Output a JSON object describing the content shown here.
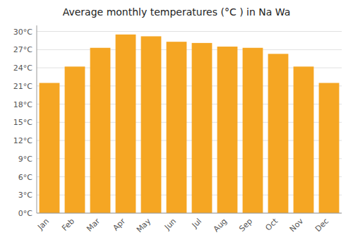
{
  "chart_data": {
    "type": "bar",
    "title": "Average monthly temperatures (°C ) in Na Wa",
    "categories": [
      "Jan",
      "Feb",
      "Mar",
      "Apr",
      "May",
      "Jun",
      "Jul",
      "Aug",
      "Sep",
      "Oct",
      "Nov",
      "Dec"
    ],
    "values": [
      21.5,
      24.2,
      27.3,
      29.5,
      29.2,
      28.3,
      28.1,
      27.5,
      27.3,
      26.3,
      24.2,
      21.5
    ],
    "color": "#F5A623",
    "ylim": [
      0,
      31
    ],
    "yticks": [
      {
        "value": 0,
        "label": "0°C"
      },
      {
        "value": 3,
        "label": "3°C"
      },
      {
        "value": 6,
        "label": "6°C"
      },
      {
        "value": 9,
        "label": "9°C"
      },
      {
        "value": 12,
        "label": "12°C"
      },
      {
        "value": 15,
        "label": "15°C"
      },
      {
        "value": 18,
        "label": "18°C"
      },
      {
        "value": 21,
        "label": "21°C"
      },
      {
        "value": 24,
        "label": "24°C"
      },
      {
        "value": 27,
        "label": "27°C"
      },
      {
        "value": 30,
        "label": "30°C"
      }
    ],
    "grid": true
  }
}
